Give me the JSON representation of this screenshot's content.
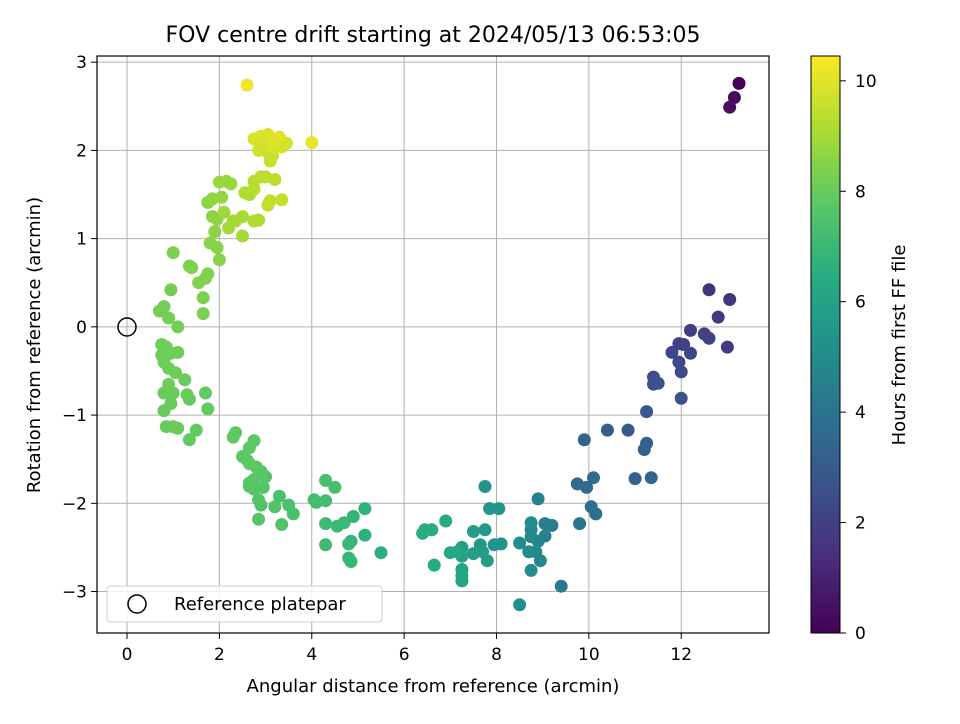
{
  "chart_data": {
    "type": "scatter",
    "title": "FOV centre drift starting at 2024/05/13 06:53:05",
    "xlabel": "Angular distance from reference (arcmin)",
    "ylabel": "Rotation from reference (arcmin)",
    "xlim": [
      -0.65,
      13.9
    ],
    "ylim": [
      -3.47,
      3.07
    ],
    "x_ticks": [
      0,
      2,
      4,
      6,
      8,
      10,
      12
    ],
    "y_ticks": [
      -3,
      -2,
      -1,
      0,
      1,
      2,
      3
    ],
    "x_tick_labels": [
      "0",
      "2",
      "4",
      "6",
      "8",
      "10",
      "12"
    ],
    "y_tick_labels": [
      "−3",
      "−2",
      "−1",
      "0",
      "1",
      "2",
      "3"
    ],
    "grid": true,
    "colorbar": {
      "label": "Hours from first FF file",
      "range": [
        0,
        10.45
      ],
      "ticks": [
        0,
        2,
        4,
        6,
        8,
        10
      ],
      "tick_labels": [
        "0",
        "2",
        "4",
        "6",
        "8",
        "10"
      ],
      "colormap": "viridis"
    },
    "reference_point": {
      "x": 0,
      "y": 0
    },
    "legend": {
      "position": "lower-left",
      "entries": [
        "Reference platepar"
      ]
    },
    "points": [
      [
        13.25,
        2.76,
        0.1
      ],
      [
        13.15,
        2.6,
        0.3
      ],
      [
        13.05,
        2.49,
        0.4
      ],
      [
        12.6,
        0.42,
        1.5
      ],
      [
        13.05,
        0.31,
        1.6
      ],
      [
        12.8,
        0.11,
        1.7
      ],
      [
        13.0,
        -0.23,
        1.8
      ],
      [
        12.2,
        -0.04,
        1.9
      ],
      [
        12.5,
        -0.08,
        2.0
      ],
      [
        12.6,
        -0.13,
        2.0
      ],
      [
        11.95,
        -0.19,
        2.1
      ],
      [
        12.05,
        -0.2,
        2.1
      ],
      [
        11.8,
        -0.29,
        2.2
      ],
      [
        12.2,
        -0.3,
        2.2
      ],
      [
        11.95,
        -0.4,
        2.3
      ],
      [
        12.0,
        -0.51,
        2.4
      ],
      [
        11.4,
        -0.57,
        2.5
      ],
      [
        11.4,
        -0.65,
        2.5
      ],
      [
        11.5,
        -0.64,
        2.6
      ],
      [
        12.0,
        -0.81,
        2.7
      ],
      [
        11.25,
        -0.96,
        2.9
      ],
      [
        10.4,
        -1.17,
        3.0
      ],
      [
        10.85,
        -1.17,
        3.0
      ],
      [
        11.25,
        -1.32,
        3.1
      ],
      [
        11.2,
        -1.39,
        3.2
      ],
      [
        9.9,
        -1.28,
        3.3
      ],
      [
        11.0,
        -1.72,
        3.3
      ],
      [
        11.35,
        -1.71,
        3.4
      ],
      [
        9.75,
        -1.78,
        3.5
      ],
      [
        9.95,
        -1.82,
        3.6
      ],
      [
        10.1,
        -1.71,
        3.6
      ],
      [
        10.05,
        -2.04,
        3.7
      ],
      [
        10.15,
        -2.12,
        3.8
      ],
      [
        9.8,
        -2.23,
        4.0
      ],
      [
        9.4,
        -2.94,
        4.2
      ],
      [
        9.2,
        -2.25,
        4.3
      ],
      [
        9.05,
        -2.23,
        4.4
      ],
      [
        8.9,
        -1.95,
        4.5
      ],
      [
        9.05,
        -2.37,
        4.5
      ],
      [
        8.75,
        -2.3,
        4.6
      ],
      [
        8.9,
        -2.43,
        4.7
      ],
      [
        8.75,
        -2.38,
        4.8
      ],
      [
        8.85,
        -2.55,
        4.8
      ],
      [
        8.95,
        -2.65,
        4.9
      ],
      [
        8.7,
        -2.55,
        5.0
      ],
      [
        8.75,
        -2.22,
        5.0
      ],
      [
        8.5,
        -2.45,
        5.1
      ],
      [
        8.75,
        -2.76,
        5.1
      ],
      [
        8.5,
        -3.15,
        5.2
      ],
      [
        8.1,
        -2.46,
        5.3
      ],
      [
        7.95,
        -2.47,
        5.4
      ],
      [
        7.85,
        -2.06,
        5.5
      ],
      [
        8.05,
        -2.06,
        5.5
      ],
      [
        7.75,
        -1.81,
        5.5
      ],
      [
        7.75,
        -2.3,
        5.6
      ],
      [
        7.65,
        -2.47,
        5.6
      ],
      [
        7.7,
        -2.55,
        5.7
      ],
      [
        7.8,
        -2.65,
        5.7
      ],
      [
        7.5,
        -2.32,
        5.8
      ],
      [
        7.5,
        -2.57,
        5.8
      ],
      [
        7.25,
        -2.5,
        5.9
      ],
      [
        7.25,
        -2.6,
        6.0
      ],
      [
        7.25,
        -2.75,
        6.0
      ],
      [
        7.25,
        -2.82,
        6.1
      ],
      [
        7.25,
        -2.88,
        6.1
      ],
      [
        7.15,
        -2.55,
        6.2
      ],
      [
        7.0,
        -2.56,
        6.2
      ],
      [
        6.9,
        -2.2,
        6.3
      ],
      [
        6.65,
        -2.7,
        6.4
      ],
      [
        6.6,
        -2.3,
        6.4
      ],
      [
        6.45,
        -2.3,
        6.5
      ],
      [
        6.4,
        -2.34,
        6.5
      ],
      [
        5.5,
        -2.56,
        6.6
      ],
      [
        5.15,
        -2.06,
        6.7
      ],
      [
        5.15,
        -2.36,
        6.7
      ],
      [
        4.9,
        -2.15,
        6.8
      ],
      [
        4.85,
        -2.43,
        6.8
      ],
      [
        4.8,
        -2.46,
        6.9
      ],
      [
        4.8,
        -2.62,
        6.9
      ],
      [
        4.85,
        -2.66,
        6.9
      ],
      [
        4.7,
        -2.22,
        7.0
      ],
      [
        4.55,
        -2.26,
        7.0
      ],
      [
        4.3,
        -2.23,
        7.1
      ],
      [
        4.3,
        -2.47,
        7.1
      ],
      [
        4.3,
        -1.97,
        7.2
      ],
      [
        4.1,
        -1.99,
        7.2
      ],
      [
        4.05,
        -1.96,
        7.2
      ],
      [
        4.3,
        -1.74,
        7.3
      ],
      [
        4.5,
        -1.82,
        7.3
      ],
      [
        3.6,
        -2.12,
        7.4
      ],
      [
        3.5,
        -2.02,
        7.4
      ],
      [
        3.3,
        -1.92,
        7.4
      ],
      [
        3.35,
        -2.24,
        7.5
      ],
      [
        3.2,
        -2.04,
        7.5
      ],
      [
        2.9,
        -2.02,
        7.5
      ],
      [
        2.85,
        -2.18,
        7.6
      ],
      [
        2.85,
        -1.96,
        7.6
      ],
      [
        2.95,
        -1.82,
        7.6
      ],
      [
        3.0,
        -1.7,
        7.6
      ],
      [
        2.75,
        -1.84,
        7.6
      ],
      [
        2.65,
        -1.81,
        7.7
      ],
      [
        2.65,
        -1.77,
        7.7
      ],
      [
        2.75,
        -1.73,
        7.7
      ],
      [
        2.9,
        -1.64,
        7.7
      ],
      [
        2.8,
        -1.59,
        7.7
      ],
      [
        2.65,
        -1.55,
        7.8
      ],
      [
        2.6,
        -1.51,
        7.8
      ],
      [
        2.5,
        -1.47,
        7.8
      ],
      [
        2.65,
        -1.37,
        7.8
      ],
      [
        2.75,
        -1.29,
        7.8
      ],
      [
        2.35,
        -1.2,
        7.8
      ],
      [
        2.3,
        -1.25,
        7.8
      ],
      [
        1.75,
        -0.93,
        7.9
      ],
      [
        1.7,
        -0.75,
        7.9
      ],
      [
        1.5,
        -1.17,
        7.9
      ],
      [
        1.35,
        -1.28,
        7.9
      ],
      [
        1.35,
        -0.82,
        7.9
      ],
      [
        1.3,
        -0.77,
        8.0
      ],
      [
        1.25,
        -0.6,
        8.0
      ],
      [
        1.0,
        -1.13,
        8.0
      ],
      [
        1.1,
        -1.15,
        8.0
      ],
      [
        0.85,
        -1.13,
        8.0
      ],
      [
        0.8,
        -0.95,
        8.0
      ],
      [
        0.95,
        -0.87,
        8.0
      ],
      [
        1.0,
        -0.75,
        8.0
      ],
      [
        0.8,
        -0.75,
        8.0
      ],
      [
        0.9,
        -0.65,
        8.1
      ],
      [
        1.05,
        -0.52,
        8.1
      ],
      [
        0.9,
        -0.47,
        8.1
      ],
      [
        0.8,
        -0.4,
        8.1
      ],
      [
        0.75,
        -0.32,
        8.1
      ],
      [
        0.95,
        -0.3,
        8.1
      ],
      [
        1.1,
        -0.29,
        8.1
      ],
      [
        0.85,
        -0.23,
        8.1
      ],
      [
        0.75,
        -0.2,
        8.1
      ],
      [
        1.1,
        0.0,
        8.2
      ],
      [
        0.9,
        0.1,
        8.2
      ],
      [
        0.7,
        0.18,
        8.2
      ],
      [
        0.8,
        0.23,
        8.2
      ],
      [
        0.95,
        0.42,
        8.2
      ],
      [
        1.0,
        0.84,
        8.3
      ],
      [
        1.65,
        0.15,
        8.3
      ],
      [
        1.65,
        0.33,
        8.3
      ],
      [
        1.55,
        0.5,
        8.4
      ],
      [
        1.7,
        0.55,
        8.4
      ],
      [
        1.75,
        0.6,
        8.4
      ],
      [
        1.35,
        0.69,
        8.4
      ],
      [
        1.4,
        0.67,
        8.4
      ],
      [
        2.0,
        0.76,
        8.5
      ],
      [
        1.95,
        0.9,
        8.5
      ],
      [
        1.8,
        0.95,
        8.5
      ],
      [
        1.9,
        1.08,
        8.6
      ],
      [
        1.95,
        1.22,
        8.6
      ],
      [
        1.85,
        1.25,
        8.6
      ],
      [
        1.75,
        1.41,
        8.6
      ],
      [
        1.85,
        1.45,
        8.7
      ],
      [
        2.05,
        1.47,
        8.7
      ],
      [
        2.0,
        1.64,
        8.8
      ],
      [
        2.15,
        1.65,
        8.8
      ],
      [
        2.25,
        1.62,
        8.8
      ],
      [
        2.1,
        1.3,
        8.9
      ],
      [
        2.3,
        1.2,
        8.9
      ],
      [
        2.2,
        1.12,
        9.0
      ],
      [
        2.5,
        1.03,
        9.0
      ],
      [
        2.35,
        1.2,
        9.0
      ],
      [
        2.5,
        1.25,
        9.1
      ],
      [
        2.65,
        1.5,
        9.1
      ],
      [
        2.55,
        1.52,
        9.2
      ],
      [
        2.75,
        1.2,
        9.2
      ],
      [
        2.85,
        1.21,
        9.2
      ],
      [
        2.75,
        1.56,
        9.3
      ],
      [
        2.75,
        1.65,
        9.3
      ],
      [
        2.9,
        1.7,
        9.3
      ],
      [
        3.0,
        1.7,
        9.4
      ],
      [
        3.2,
        1.67,
        9.4
      ],
      [
        3.1,
        1.43,
        9.4
      ],
      [
        3.05,
        1.38,
        9.5
      ],
      [
        3.35,
        1.44,
        9.5
      ],
      [
        3.1,
        1.88,
        9.5
      ],
      [
        3.15,
        1.94,
        9.6
      ],
      [
        3.05,
        1.98,
        9.6
      ],
      [
        2.85,
        2.0,
        9.7
      ],
      [
        2.95,
        2.05,
        9.7
      ],
      [
        3.15,
        2.03,
        9.8
      ],
      [
        3.35,
        2.04,
        9.8
      ],
      [
        3.45,
        2.08,
        9.8
      ],
      [
        2.75,
        2.13,
        9.9
      ],
      [
        2.9,
        2.16,
        9.9
      ],
      [
        3.05,
        2.18,
        9.9
      ],
      [
        3.2,
        2.12,
        10.0
      ],
      [
        3.3,
        2.15,
        10.0
      ],
      [
        4.0,
        2.09,
        10.1
      ],
      [
        2.6,
        2.74,
        10.3
      ]
    ]
  }
}
